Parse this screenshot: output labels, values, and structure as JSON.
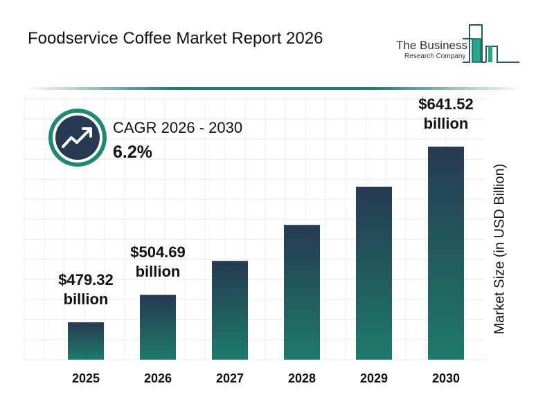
{
  "title": "Foodservice Coffee Market Report 2026",
  "logo": {
    "line1": "The Business",
    "line2": "Research Company"
  },
  "cagr": {
    "label": "CAGR 2026 - 2030",
    "value": "6.2%",
    "icon": "trend-up-arrow-icon"
  },
  "colors": {
    "bar_top": "#263a52",
    "bar_bottom": "#1e7b6a",
    "accent": "#1f7a68",
    "icon_bg": "#263a52"
  },
  "chart_data": {
    "type": "bar",
    "title": "",
    "xlabel": "",
    "ylabel": "Market Size (in USD Billion)",
    "categories": [
      "2025",
      "2026",
      "2027",
      "2028",
      "2029",
      "2030"
    ],
    "values": [
      479.32,
      504.69,
      536.0,
      569.2,
      604.5,
      641.52
    ],
    "data_labels": [
      [
        "$479.32",
        "billion"
      ],
      [
        "$504.69",
        "billion"
      ],
      null,
      null,
      null,
      [
        "$641.52",
        "billion"
      ]
    ],
    "grid": true
  }
}
